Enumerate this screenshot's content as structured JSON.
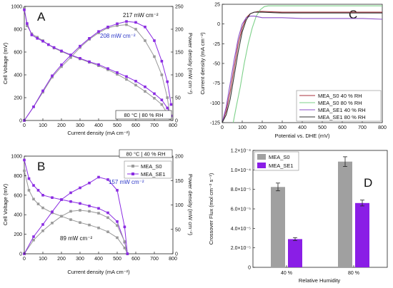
{
  "colors": {
    "s0": "#9a9a9a",
    "se1": "#8a2be2",
    "red": "#a8323e",
    "green": "#7ed18a",
    "purple": "#8a4fc7",
    "black": "#333333",
    "blue_text": "#2b36c8",
    "bar_gray": "#a0a0a0",
    "bar_purple": "#8a1ee6"
  },
  "chart_data": [
    {
      "panel": "A",
      "type": "line",
      "xlabel": "Current density (mA cm⁻²)",
      "ylabel": "Cell Voltage (mV)",
      "y2label": "Power density (mW cm⁻²)",
      "xlim": [
        0,
        800
      ],
      "ylim": [
        0,
        1000
      ],
      "y2lim": [
        0,
        250
      ],
      "xticks": [
        "0",
        "100",
        "200",
        "300",
        "400",
        "500",
        "600",
        "700",
        "800"
      ],
      "yticks": [
        "0",
        "200",
        "400",
        "600",
        "800",
        "1000"
      ],
      "y2ticks": [
        "0",
        "50",
        "100",
        "150",
        "200",
        "250"
      ],
      "condition": "80 °C | 80 % RH",
      "annotations": [
        {
          "text": "217 mW cm⁻²",
          "color": "black"
        },
        {
          "text": "208 mW cm⁻²",
          "color": "blue"
        }
      ],
      "series": [
        {
          "series_id": "S0",
          "kind": "voltage",
          "x": [
            0,
            15,
            40,
            70,
            100,
            130,
            160,
            200,
            250,
            300,
            350,
            400,
            450,
            500,
            550,
            600,
            650,
            700,
            740,
            770,
            785
          ],
          "y": [
            985,
            830,
            760,
            730,
            700,
            665,
            635,
            605,
            570,
            540,
            510,
            480,
            445,
            405,
            360,
            310,
            255,
            195,
            140,
            60,
            10
          ]
        },
        {
          "series_id": "SE1",
          "kind": "voltage",
          "x": [
            0,
            15,
            40,
            70,
            100,
            130,
            160,
            200,
            250,
            300,
            350,
            400,
            450,
            500,
            550,
            600,
            650,
            700,
            740,
            770,
            790
          ],
          "y": [
            970,
            850,
            750,
            720,
            695,
            665,
            640,
            610,
            575,
            545,
            515,
            490,
            455,
            420,
            385,
            345,
            295,
            235,
            180,
            110,
            40
          ]
        },
        {
          "series_id": "S0",
          "kind": "power",
          "x": [
            0,
            50,
            100,
            150,
            200,
            250,
            300,
            350,
            400,
            450,
            500,
            550,
            600,
            650,
            700,
            740,
            770,
            785
          ],
          "y": [
            0,
            30,
            62,
            95,
            118,
            138,
            160,
            178,
            192,
            203,
            208,
            210,
            200,
            175,
            140,
            100,
            50,
            8
          ]
        },
        {
          "series_id": "SE1",
          "kind": "power",
          "x": [
            0,
            50,
            100,
            150,
            200,
            250,
            300,
            350,
            400,
            450,
            500,
            550,
            600,
            650,
            700,
            740,
            770,
            790
          ],
          "y": [
            0,
            30,
            65,
            98,
            122,
            143,
            163,
            180,
            195,
            205,
            212,
            217,
            215,
            205,
            175,
            130,
            85,
            35
          ]
        }
      ]
    },
    {
      "panel": "B",
      "type": "line",
      "xlabel": "Current density (mA cm⁻²)",
      "ylabel": "Cell Voltage (mV)",
      "y2label": "Power density (mW cm⁻²)",
      "xlim": [
        0,
        800
      ],
      "ylim": [
        0,
        1000
      ],
      "y2lim": [
        0,
        200
      ],
      "xticks": [
        "0",
        "100",
        "200",
        "300",
        "400",
        "500",
        "600",
        "700",
        "800"
      ],
      "yticks": [
        "0",
        "200",
        "400",
        "600",
        "800",
        "1000"
      ],
      "y2ticks": [
        "0",
        "50",
        "100",
        "150",
        "200"
      ],
      "condition": "80 °C | 40 % RH",
      "legend": [
        "MEA_S0",
        "MEA_SE1"
      ],
      "annotations": [
        {
          "text": "157 mW cm⁻²",
          "color": "blue"
        },
        {
          "text": "89 mW cm⁻²",
          "color": "black"
        }
      ],
      "series": [
        {
          "series_id": "S0",
          "kind": "voltage",
          "x": [
            0,
            25,
            50,
            75,
            100,
            150,
            200,
            250,
            300,
            350,
            400,
            450,
            500,
            540,
            555
          ],
          "y": [
            850,
            650,
            560,
            510,
            470,
            420,
            385,
            350,
            320,
            295,
            265,
            225,
            165,
            60,
            0
          ]
        },
        {
          "series_id": "SE1",
          "kind": "voltage",
          "x": [
            0,
            25,
            50,
            75,
            100,
            150,
            200,
            250,
            300,
            350,
            400,
            450,
            500,
            540,
            555
          ],
          "y": [
            960,
            770,
            700,
            650,
            600,
            575,
            555,
            535,
            515,
            490,
            465,
            420,
            330,
            120,
            0
          ]
        },
        {
          "series_id": "S0",
          "kind": "power",
          "x": [
            0,
            50,
            100,
            150,
            200,
            250,
            300,
            350,
            400,
            450,
            500,
            540,
            555
          ],
          "y": [
            0,
            28,
            47,
            63,
            77,
            87,
            89,
            87,
            83,
            74,
            58,
            25,
            0
          ]
        },
        {
          "series_id": "SE1",
          "kind": "power",
          "x": [
            0,
            50,
            100,
            150,
            200,
            250,
            300,
            350,
            400,
            450,
            500,
            540,
            555
          ],
          "y": [
            0,
            35,
            60,
            86,
            111,
            125,
            135,
            145,
            157,
            152,
            130,
            55,
            0
          ]
        }
      ]
    },
    {
      "panel": "C",
      "type": "line",
      "xlabel": "Potential vs. DHE (mV)",
      "ylabel": "Current density (mA cm⁻²)",
      "xlim": [
        0,
        800
      ],
      "ylim": [
        -125,
        25
      ],
      "xticks": [
        "0",
        "100",
        "200",
        "300",
        "400",
        "500",
        "600",
        "700",
        "800"
      ],
      "yticks": [
        "-125",
        "-100",
        "-75",
        "-50",
        "-25",
        "0",
        "25"
      ],
      "legend": [
        "MEA_S0 40 % RH",
        "MEA_S0 80 % RH",
        "MEA_SE1 40 % RH",
        "MEA_SE1 80 % RH"
      ],
      "series": [
        {
          "series_id": "S0_40",
          "x": [
            0,
            20,
            40,
            60,
            80,
            100,
            120,
            140,
            160,
            180,
            200,
            300,
            400,
            500,
            600,
            700,
            800
          ],
          "y": [
            -125,
            -110,
            -85,
            -55,
            -25,
            -5,
            8,
            13,
            15,
            16,
            16,
            15,
            15,
            15,
            15,
            15,
            15
          ]
        },
        {
          "series_id": "S0_80",
          "x": [
            55,
            70,
            90,
            110,
            130,
            150,
            170,
            190,
            210,
            230,
            260,
            300,
            400,
            500,
            600,
            700,
            800
          ],
          "y": [
            -125,
            -105,
            -80,
            -50,
            -25,
            -5,
            10,
            18,
            22,
            23,
            23,
            23,
            23,
            23,
            23,
            23,
            23
          ]
        },
        {
          "series_id": "SE1_40",
          "x": [
            0,
            20,
            40,
            60,
            80,
            100,
            120,
            140,
            160,
            180,
            200,
            300,
            400,
            500,
            600,
            700,
            800
          ],
          "y": [
            -125,
            -105,
            -75,
            -45,
            -18,
            0,
            8,
            10,
            10,
            9,
            8,
            8,
            7,
            7,
            7,
            7,
            6
          ]
        },
        {
          "series_id": "SE1_80",
          "x": [
            0,
            20,
            40,
            60,
            80,
            100,
            120,
            140,
            160,
            180,
            200,
            300,
            400,
            500,
            600,
            700,
            800
          ],
          "y": [
            -125,
            -115,
            -95,
            -65,
            -35,
            -10,
            5,
            13,
            15,
            15,
            15,
            14,
            14,
            14,
            14,
            14,
            14
          ]
        }
      ]
    },
    {
      "panel": "D",
      "type": "bar",
      "xlabel": "Relative Humidity",
      "ylabel": "Crossover Flux (mol cm⁻² s⁻¹)",
      "categories": [
        "40 %",
        "80 %"
      ],
      "ylim": [
        0,
        0.00012
      ],
      "yticks": [
        "0",
        "2.0×10⁻⁵",
        "4.0×10⁻⁵",
        "6.0×10⁻⁵",
        "8.0×10⁻⁵",
        "1.0×10⁻⁴",
        "1.2×10⁻⁴"
      ],
      "legend": [
        "MEA_S0",
        "MEA_SE1"
      ],
      "series": [
        {
          "name": "MEA_S0",
          "values": [
            8.25e-05,
            0.0001085
          ],
          "errors": [
            4e-06,
            5e-06
          ]
        },
        {
          "name": "MEA_SE1",
          "values": [
            2.9e-05,
            6.6e-05
          ],
          "errors": [
            1.5e-06,
            3e-06
          ]
        }
      ]
    }
  ],
  "panel_letters": [
    "A",
    "B",
    "C",
    "D"
  ]
}
